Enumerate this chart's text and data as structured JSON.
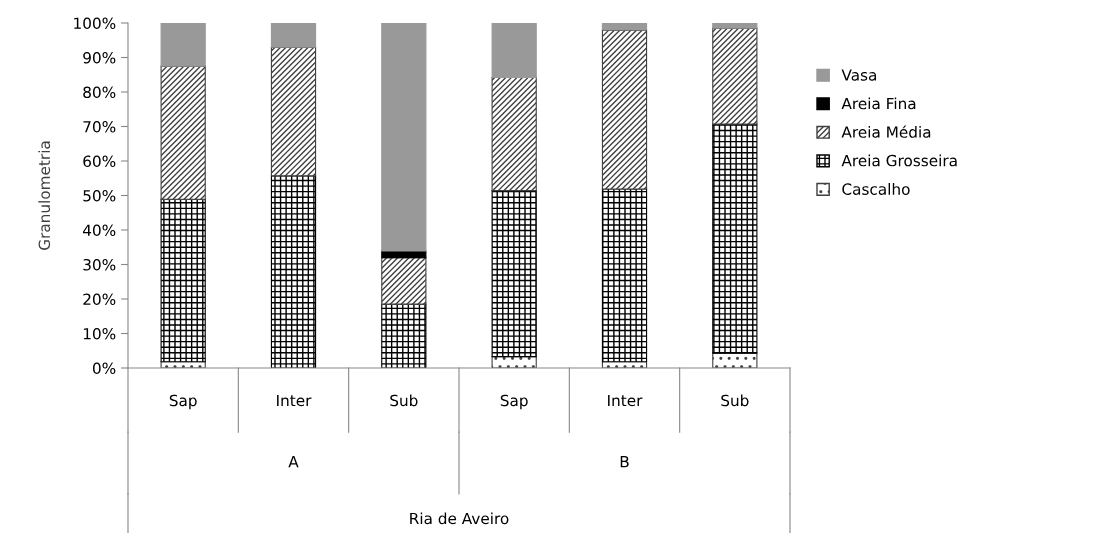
{
  "chart_data": {
    "type": "bar",
    "stacked": true,
    "ylabel": "Granulometria",
    "categories": [
      "Sap",
      "Inter",
      "Sub",
      "Sap",
      "Inter",
      "Sub"
    ],
    "series": [
      {
        "name": "Cascalho",
        "color": "#404040",
        "values": [
          1.8,
          null,
          null,
          3.3,
          1.8,
          4.3
        ]
      },
      {
        "name": "Areia Grosseira",
        "color": "#000000",
        "values": [
          47.1,
          55.7,
          18.5,
          48.1,
          50.1,
          66.4
        ]
      },
      {
        "name": "Areia Média",
        "color": "#404040",
        "values": [
          38.6,
          37.3,
          13.5,
          32.8,
          46.1,
          27.8
        ]
      },
      {
        "name": "Areia Fina",
        "color": "#000000",
        "values": [
          null,
          null,
          1.9,
          null,
          null,
          null
        ]
      },
      {
        "name": "Vasa",
        "color": "#999999",
        "values": [
          12.5,
          7.0,
          66.1,
          15.8,
          2.0,
          1.5
        ]
      }
    ],
    "ylim": [
      0,
      100
    ],
    "yticks": [
      {
        "value": 0,
        "label": "0%"
      },
      {
        "value": 10,
        "label": "10%"
      },
      {
        "value": 20,
        "label": "20%"
      },
      {
        "value": 30,
        "label": "30%"
      },
      {
        "value": 40,
        "label": "40%"
      },
      {
        "value": 50,
        "label": "50%"
      },
      {
        "value": 60,
        "label": "60%"
      },
      {
        "value": 70,
        "label": "70%"
      },
      {
        "value": 80,
        "label": "80%"
      },
      {
        "value": 90,
        "label": "90%"
      },
      {
        "value": 100,
        "label": "100%"
      }
    ],
    "annotations": [
      "A",
      "B",
      "Ria de Aveiro"
    ],
    "legend": "right",
    "grid": false
  }
}
